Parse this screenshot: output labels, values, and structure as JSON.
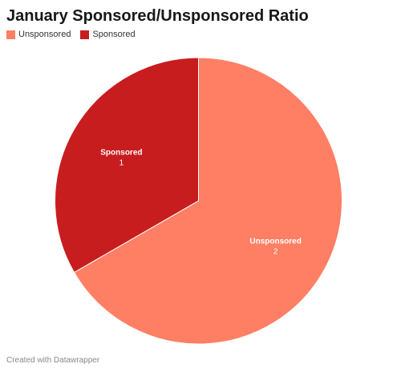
{
  "chart_data": {
    "type": "pie",
    "title": "January Sponsored/Unsponsored Ratio",
    "legend_position": "top-left",
    "series": [
      {
        "name": "Unsponsored",
        "value": 2,
        "color": "#FE7F63"
      },
      {
        "name": "Sponsored",
        "value": 1,
        "color": "#C81D1F"
      }
    ]
  },
  "footer": {
    "credit": "Created with Datawrapper"
  }
}
